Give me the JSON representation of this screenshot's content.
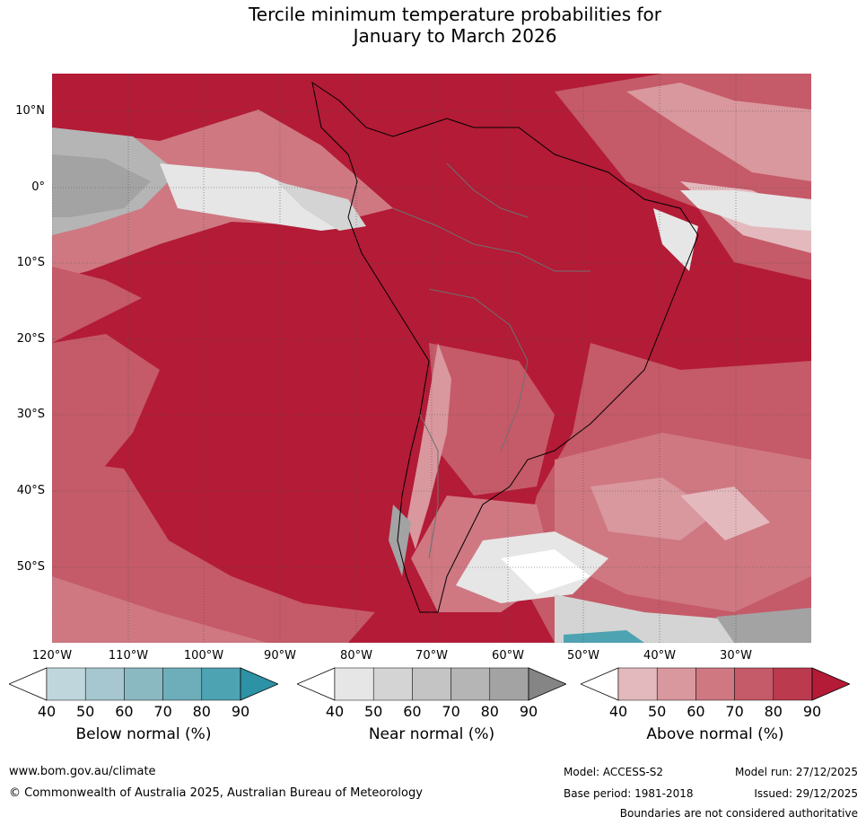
{
  "title_line1": "Tercile minimum temperature probabilities for",
  "title_line2": "January to March 2026",
  "lat_labels": [
    "10°N",
    "0°",
    "10°S",
    "20°S",
    "30°S",
    "40°S",
    "50°S"
  ],
  "lon_labels": [
    "120°W",
    "110°W",
    "100°W",
    "90°W",
    "80°W",
    "70°W",
    "60°W",
    "50°W",
    "40°W",
    "30°W"
  ],
  "legends": [
    {
      "title": "Below normal (%)",
      "ticks": [
        "40",
        "50",
        "60",
        "70",
        "80",
        "90"
      ],
      "colors": [
        "#ffffff",
        "#bfd6dc",
        "#a6c7cf",
        "#8bb9c2",
        "#6eaebb",
        "#4ea3b3",
        "#2e92a6"
      ]
    },
    {
      "title": "Near normal (%)",
      "ticks": [
        "40",
        "50",
        "60",
        "70",
        "80",
        "90"
      ],
      "colors": [
        "#ffffff",
        "#e6e6e6",
        "#d4d4d4",
        "#c4c4c4",
        "#b5b5b5",
        "#a3a3a3",
        "#858585"
      ]
    },
    {
      "title": "Above normal (%)",
      "ticks": [
        "40",
        "50",
        "60",
        "70",
        "80",
        "90"
      ],
      "colors": [
        "#ffffff",
        "#e3b9be",
        "#d9979e",
        "#cf7882",
        "#c55a68",
        "#bc3a4e",
        "#b31b36"
      ]
    }
  ],
  "footer": {
    "website": "www.bom.gov.au/climate",
    "copyright": "© Commonwealth of Australia 2025, Australian Bureau of Meteorology",
    "model": "Model: ACCESS-S2",
    "model_run": "Model run: 27/12/2025",
    "base_period": "Base period: 1981-2018",
    "issued": "Issued: 29/12/2025",
    "disclaimer": "Boundaries are not considered authoritative"
  }
}
